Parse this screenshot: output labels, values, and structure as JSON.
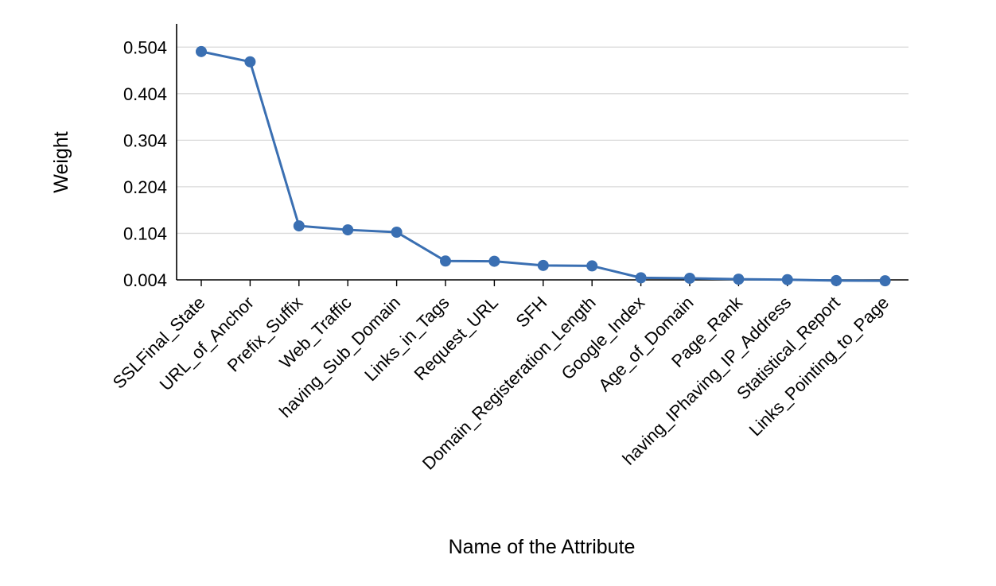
{
  "chart_data": {
    "type": "line",
    "title": "",
    "xlabel": "Name of the Attribute",
    "ylabel": "Weight",
    "ylim": [
      0.004,
      0.554
    ],
    "yticks": [
      "0.004",
      "0.104",
      "0.204",
      "0.304",
      "0.404",
      "0.504"
    ],
    "grid": true,
    "legend": "none",
    "categories": [
      "SSLFinal_State",
      "URL_of_Anchor",
      "Prefix_Suffix",
      "Web_Traffic",
      "having_Sub_Domain",
      "Links_in_Tags",
      "Request_URL",
      "SFH",
      "Domain_Registeration_Length",
      "Google_Index",
      "Age_of_Domain",
      "Page_Rank",
      "having_IPhaving_IP_Address",
      "Statistical_Report",
      "Links_Pointing_to_Page"
    ],
    "series": [
      {
        "values": [
          0.4945,
          0.4725,
          0.12,
          0.1115,
          0.1065,
          0.0445,
          0.044,
          0.035,
          0.034,
          0.0085,
          0.0075,
          0.0055,
          0.0045,
          0.0025,
          0.002
        ]
      }
    ],
    "colors": {
      "line": "#3a6fb2",
      "marker": "#3a6fb2",
      "grid": "#d9d9d9",
      "axis": "#000000"
    }
  }
}
